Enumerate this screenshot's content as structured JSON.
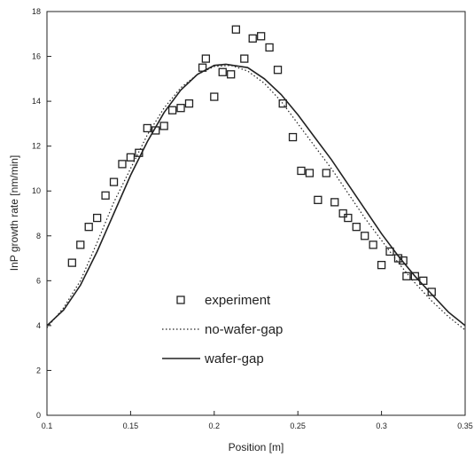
{
  "chart_data": {
    "type": "scatter",
    "xlabel": "Position [m]",
    "ylabel": "InP growth rate [nm/min]",
    "xlim": [
      0.1,
      0.35
    ],
    "ylim": [
      0,
      18
    ],
    "x_ticks": [
      0.1,
      0.15,
      0.2,
      0.25,
      0.3,
      0.35
    ],
    "x_tick_labels": [
      "0.1",
      "0.15",
      "0.2",
      "0.25",
      "0.3",
      "0.35"
    ],
    "y_ticks": [
      0,
      2,
      4,
      6,
      8,
      10,
      12,
      14,
      16,
      18
    ],
    "y_tick_labels": [
      "0",
      "2",
      "4",
      "6",
      "8",
      "10",
      "12",
      "14",
      "16",
      "18"
    ],
    "legend_position": "lower-left",
    "colors": {
      "ink": "#222222",
      "background": "#ffffff"
    },
    "series": [
      {
        "name": "experiment",
        "style": "square-marker",
        "points": [
          [
            0.115,
            6.8
          ],
          [
            0.12,
            7.6
          ],
          [
            0.125,
            8.4
          ],
          [
            0.13,
            8.8
          ],
          [
            0.135,
            9.8
          ],
          [
            0.14,
            10.4
          ],
          [
            0.145,
            11.2
          ],
          [
            0.15,
            11.5
          ],
          [
            0.155,
            11.7
          ],
          [
            0.16,
            12.8
          ],
          [
            0.165,
            12.7
          ],
          [
            0.17,
            12.9
          ],
          [
            0.175,
            13.6
          ],
          [
            0.18,
            13.7
          ],
          [
            0.185,
            13.9
          ],
          [
            0.193,
            15.5
          ],
          [
            0.195,
            15.9
          ],
          [
            0.2,
            14.2
          ],
          [
            0.205,
            15.3
          ],
          [
            0.21,
            15.2
          ],
          [
            0.213,
            17.2
          ],
          [
            0.218,
            15.9
          ],
          [
            0.223,
            16.8
          ],
          [
            0.228,
            16.9
          ],
          [
            0.233,
            16.4
          ],
          [
            0.238,
            15.4
          ],
          [
            0.241,
            13.9
          ],
          [
            0.247,
            12.4
          ],
          [
            0.252,
            10.9
          ],
          [
            0.257,
            10.8
          ],
          [
            0.262,
            9.6
          ],
          [
            0.267,
            10.8
          ],
          [
            0.272,
            9.5
          ],
          [
            0.277,
            9.0
          ],
          [
            0.28,
            8.8
          ],
          [
            0.285,
            8.4
          ],
          [
            0.29,
            8.0
          ],
          [
            0.295,
            7.6
          ],
          [
            0.3,
            6.7
          ],
          [
            0.305,
            7.3
          ],
          [
            0.31,
            7.0
          ],
          [
            0.313,
            6.9
          ],
          [
            0.315,
            6.2
          ],
          [
            0.32,
            6.2
          ],
          [
            0.325,
            6.0
          ],
          [
            0.33,
            5.5
          ]
        ]
      },
      {
        "name": "no-wafer-gap",
        "style": "dotted-line",
        "points": [
          [
            0.1,
            3.9
          ],
          [
            0.11,
            4.8
          ],
          [
            0.12,
            6.0
          ],
          [
            0.13,
            7.7
          ],
          [
            0.14,
            9.5
          ],
          [
            0.15,
            11.0
          ],
          [
            0.16,
            12.5
          ],
          [
            0.17,
            13.7
          ],
          [
            0.18,
            14.6
          ],
          [
            0.19,
            15.2
          ],
          [
            0.2,
            15.55
          ],
          [
            0.21,
            15.6
          ],
          [
            0.22,
            15.35
          ],
          [
            0.23,
            14.8
          ],
          [
            0.24,
            14.0
          ],
          [
            0.25,
            13.0
          ],
          [
            0.26,
            12.0
          ],
          [
            0.27,
            11.0
          ],
          [
            0.28,
            9.9
          ],
          [
            0.29,
            8.8
          ],
          [
            0.3,
            7.8
          ],
          [
            0.31,
            6.8
          ],
          [
            0.32,
            5.9
          ],
          [
            0.33,
            5.1
          ],
          [
            0.34,
            4.4
          ],
          [
            0.35,
            3.8
          ]
        ]
      },
      {
        "name": "wafer-gap",
        "style": "solid-line",
        "points": [
          [
            0.1,
            4.0
          ],
          [
            0.11,
            4.7
          ],
          [
            0.12,
            5.8
          ],
          [
            0.13,
            7.3
          ],
          [
            0.14,
            9.0
          ],
          [
            0.15,
            10.7
          ],
          [
            0.16,
            12.2
          ],
          [
            0.17,
            13.5
          ],
          [
            0.18,
            14.5
          ],
          [
            0.19,
            15.2
          ],
          [
            0.2,
            15.6
          ],
          [
            0.207,
            15.65
          ],
          [
            0.22,
            15.5
          ],
          [
            0.23,
            15.0
          ],
          [
            0.24,
            14.3
          ],
          [
            0.25,
            13.4
          ],
          [
            0.26,
            12.4
          ],
          [
            0.27,
            11.4
          ],
          [
            0.28,
            10.3
          ],
          [
            0.29,
            9.2
          ],
          [
            0.3,
            8.1
          ],
          [
            0.31,
            7.1
          ],
          [
            0.32,
            6.2
          ],
          [
            0.33,
            5.4
          ],
          [
            0.34,
            4.6
          ],
          [
            0.35,
            4.0
          ]
        ]
      }
    ]
  }
}
